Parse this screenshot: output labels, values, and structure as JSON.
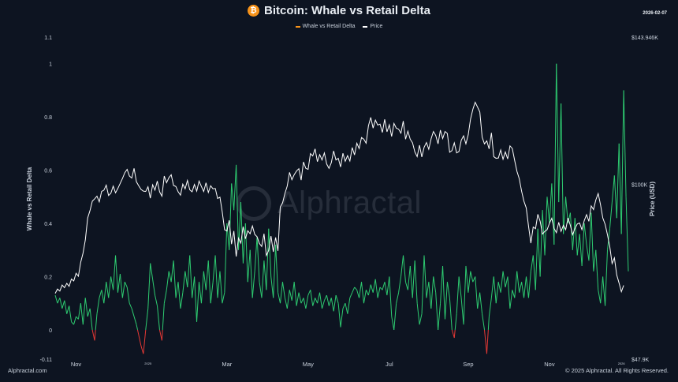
{
  "header": {
    "title": "Bitcoin: Whale vs Retail Delta",
    "date": "2026-02-07",
    "icon": "bitcoin-icon"
  },
  "legend": [
    {
      "label": "Whale vs Retail Delta",
      "color": "#f7931a"
    },
    {
      "label": "Price",
      "color": "#ffffff"
    }
  ],
  "footer": {
    "brand": "Alphractal.com",
    "copyright": "© 2025 Alphractal. All Rights Reserved."
  },
  "watermark": "Alphractal",
  "colors": {
    "background": "#0d1421",
    "positive": "#2ecc71",
    "negative": "#e53935",
    "price": "#ffffff"
  },
  "chart_data": {
    "type": "line",
    "title": "Bitcoin: Whale vs Retail Delta",
    "ylabel": "Whale vs Retail Delta",
    "y2label": "Price (USD)",
    "ylim": [
      -0.11,
      1.1
    ],
    "y2lim": [
      47900,
      143946
    ],
    "yticks": [
      "1.1",
      "1",
      "0.8",
      "0.6",
      "0.4",
      "0.2",
      "0",
      "-0.11"
    ],
    "y2ticks": [
      "$143.946K",
      "$100K",
      "$47.9K"
    ],
    "xticks": [
      "Nov",
      "2025",
      "Mar",
      "May",
      "Jul",
      "Sep",
      "Nov",
      "2026"
    ],
    "xtick_index": [
      9,
      40,
      74,
      109,
      144,
      178,
      213,
      244
    ],
    "grid": false,
    "series": [
      {
        "name": "Whale vs Retail Delta",
        "values": [
          0.13,
          0.1,
          0.12,
          0.08,
          0.11,
          0.06,
          0.09,
          0.03,
          0.02,
          0.05,
          0.04,
          0.1,
          0.02,
          0.12,
          0.05,
          0.08,
          0.0,
          -0.04,
          0.06,
          0.12,
          0.15,
          0.1,
          0.18,
          0.12,
          0.2,
          0.15,
          0.28,
          0.14,
          0.21,
          0.12,
          0.18,
          0.16,
          0.1,
          0.08,
          0.05,
          0.02,
          -0.02,
          -0.06,
          -0.09,
          0.0,
          0.08,
          0.25,
          0.19,
          0.13,
          0.09,
          0.0,
          -0.04,
          0.1,
          0.15,
          0.22,
          0.18,
          0.26,
          0.12,
          0.18,
          0.08,
          0.14,
          0.22,
          0.16,
          0.28,
          0.12,
          0.2,
          0.03,
          0.18,
          0.1,
          0.22,
          0.15,
          0.26,
          0.1,
          0.18,
          0.28,
          0.12,
          0.22,
          0.1,
          0.14,
          0.4,
          0.3,
          0.55,
          0.45,
          0.62,
          0.3,
          0.48,
          0.25,
          0.4,
          0.18,
          0.3,
          0.12,
          0.22,
          0.35,
          0.18,
          0.12,
          0.26,
          0.15,
          0.38,
          0.2,
          0.12,
          0.32,
          0.14,
          0.1,
          0.18,
          0.12,
          0.08,
          0.15,
          0.11,
          0.18,
          0.09,
          0.14,
          0.1,
          0.12,
          0.08,
          0.13,
          0.15,
          0.09,
          0.12,
          0.1,
          0.14,
          0.08,
          0.11,
          0.13,
          0.09,
          0.12,
          0.07,
          0.13,
          0.1,
          0.01,
          0.08,
          0.1,
          0.06,
          0.12,
          0.14,
          0.16,
          0.15,
          0.12,
          0.18,
          0.1,
          0.15,
          0.13,
          0.17,
          0.14,
          0.19,
          0.12,
          0.16,
          0.15,
          0.18,
          0.13,
          0.2,
          0.05,
          0.0,
          0.1,
          0.14,
          0.2,
          0.28,
          0.18,
          0.15,
          0.24,
          0.12,
          0.26,
          0.1,
          0.02,
          0.06,
          0.28,
          0.12,
          0.18,
          0.08,
          0.2,
          0.14,
          0.0,
          0.1,
          0.24,
          0.04,
          0.18,
          0.12,
          0.0,
          -0.03,
          0.06,
          0.2,
          0.12,
          0.02,
          0.24,
          0.14,
          0.22,
          0.18,
          0.2,
          0.08,
          0.14,
          0.06,
          0.0,
          -0.09,
          0.05,
          0.12,
          0.2,
          0.1,
          0.18,
          0.14,
          0.22,
          0.16,
          0.2,
          0.08,
          0.15,
          0.12,
          0.22,
          0.14,
          0.18,
          0.12,
          0.2,
          0.12,
          0.22,
          0.28,
          0.15,
          0.38,
          0.2,
          0.45,
          0.28,
          0.5,
          0.4,
          0.55,
          0.32,
          1.0,
          0.48,
          0.85,
          0.36,
          0.5,
          0.4,
          0.44,
          0.3,
          0.42,
          0.28,
          0.36,
          0.24,
          0.4,
          0.32,
          0.26,
          0.44,
          0.22,
          0.3,
          0.15,
          0.1,
          0.2,
          0.09,
          0.3,
          0.38,
          0.48,
          0.58,
          0.42,
          0.7,
          0.36,
          0.9,
          0.5,
          0.22
        ]
      },
      {
        "name": "Price",
        "values": [
          67500,
          68800,
          68200,
          70000,
          69200,
          70500,
          69600,
          71800,
          71200,
          73500,
          72600,
          76800,
          79500,
          83500,
          90000,
          92200,
          95000,
          95700,
          96500,
          94800,
          97900,
          98300,
          99800,
          96700,
          97400,
          99500,
          97500,
          98800,
          100300,
          101800,
          103500,
          104500,
          102500,
          101900,
          104800,
          100800,
          99600,
          98500,
          98000,
          97900,
          99300,
          95900,
          99900,
          98300,
          101000,
          97800,
          96500,
          102500,
          100500,
          102000,
          102900,
          99700,
          99400,
          97800,
          96800,
          100100,
          98700,
          101200,
          98400,
          97800,
          100000,
          98000,
          101000,
          99400,
          97900,
          100500,
          97600,
          99600,
          98700,
          98800,
          95800,
          96200,
          91800,
          86500,
          86100,
          89300,
          82200,
          86100,
          78500,
          84000,
          82500,
          87400,
          83800,
          86200,
          85300,
          87600,
          85100,
          84400,
          82400,
          81500,
          85300,
          78800,
          80300,
          84600,
          79900,
          84200,
          80200,
          93300,
          94500,
          97300,
          99500,
          103600,
          101400,
          102900,
          104000,
          104700,
          101300,
          106700,
          104800,
          104500,
          109200,
          108500,
          110600,
          106800,
          108900,
          107300,
          109400,
          106100,
          104800,
          106500,
          110000,
          107300,
          107800,
          105200,
          109300,
          106900,
          108600,
          107000,
          111000,
          108800,
          112300,
          110700,
          114000,
          113500,
          112300,
          117500,
          120000,
          116800,
          119200,
          117700,
          118000,
          115500,
          119400,
          115700,
          117800,
          114300,
          118200,
          116800,
          116500,
          115300,
          118900,
          113500,
          115900,
          113500,
          112400,
          109700,
          108300,
          111700,
          108200,
          111100,
          112500,
          110500,
          113600,
          115800,
          114600,
          112100,
          116200,
          113700,
          115800,
          115200,
          109600,
          110100,
          112400,
          109400,
          109800,
          113200,
          114500,
          112100,
          114800,
          119500,
          122400,
          124500,
          123100,
          121600,
          114100,
          112100,
          113000,
          110600,
          115400,
          108300,
          107800,
          107900,
          110300,
          107500,
          109700,
          107600,
          111500,
          110700,
          107200,
          103900,
          101700,
          98000,
          95000,
          93000,
          87500,
          82500,
          87300,
          86800,
          91100,
          89000,
          85200,
          86000,
          86500,
          88400,
          89900,
          86900,
          85600,
          88700,
          86000,
          87800,
          86500,
          90000,
          87800,
          85000,
          86900,
          88200,
          88500,
          86500,
          89200,
          91000,
          89000,
          93600,
          92500,
          95400,
          97300,
          94000,
          90000,
          88100,
          85000,
          81500,
          76400,
          78100,
          73000,
          70600,
          68000,
          69900
        ]
      }
    ]
  }
}
